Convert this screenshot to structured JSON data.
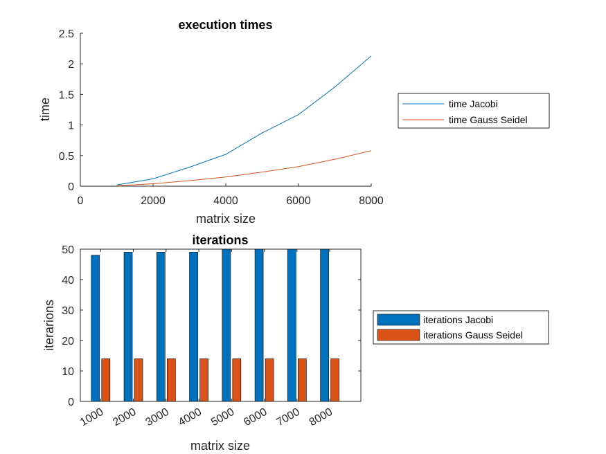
{
  "chart_data": [
    {
      "type": "line",
      "title": "execution times",
      "xlabel": "matrix size",
      "ylabel": "time",
      "xlim": [
        0,
        8000
      ],
      "ylim": [
        0,
        2.5
      ],
      "xticks": [
        "0",
        "2000",
        "4000",
        "6000",
        "8000"
      ],
      "yticks": [
        "0",
        "0.5",
        "1",
        "1.5",
        "2",
        "2.5"
      ],
      "x": [
        1000,
        2000,
        3000,
        4000,
        5000,
        6000,
        7000,
        8000
      ],
      "series": [
        {
          "name": "time Jacobi",
          "color": "#0072BD",
          "values": [
            0.02,
            0.12,
            0.31,
            0.52,
            0.87,
            1.17,
            1.62,
            2.13
          ]
        },
        {
          "name": "time Gauss Seidel",
          "color": "#D95319",
          "values": [
            0.005,
            0.04,
            0.09,
            0.15,
            0.23,
            0.32,
            0.44,
            0.58
          ]
        }
      ],
      "grid": false,
      "legend": "outside-right"
    },
    {
      "type": "bar",
      "title": "iterations",
      "xlabel": "matrix size",
      "ylabel": "iterarions",
      "ylim": [
        0,
        50
      ],
      "yticks": [
        "0",
        "10",
        "20",
        "30",
        "40",
        "50"
      ],
      "categories": [
        "1000",
        "2000",
        "3000",
        "4000",
        "5000",
        "6000",
        "7000",
        "8000"
      ],
      "series": [
        {
          "name": "iterations Jacobi",
          "color": "#0072BD",
          "values": [
            48,
            49,
            49,
            49,
            50,
            50,
            50,
            50
          ]
        },
        {
          "name": "iterations Gauss Seidel",
          "color": "#D95319",
          "values": [
            14,
            14,
            14,
            14,
            14,
            14,
            14,
            14
          ]
        }
      ],
      "grid": false,
      "legend": "outside-right"
    }
  ]
}
